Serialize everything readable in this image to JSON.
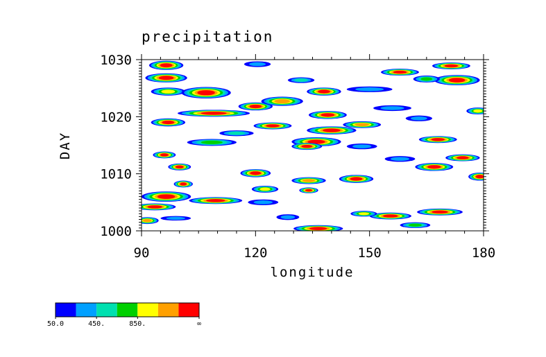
{
  "colors": {
    "levels": [
      "#0000ff",
      "#00a0ff",
      "#00e0b0",
      "#00d000",
      "#ffff00",
      "#ffa000",
      "#ff0000"
    ],
    "frame": "#000000",
    "background": "#ffffff"
  },
  "chart_data": {
    "type": "heatmap",
    "title": "precipitation",
    "xlabel": "longitude",
    "ylabel": "DAY",
    "xlim": [
      90,
      180
    ],
    "ylim": [
      1000,
      1030
    ],
    "x_ticks": [
      90,
      120,
      150,
      180
    ],
    "y_ticks": [
      1000,
      1010,
      1020,
      1030
    ],
    "x_tick_labels": [
      "90",
      "120",
      "150",
      "180"
    ],
    "y_tick_labels": [
      "1000",
      "1010",
      "1020",
      "1030"
    ],
    "colorbar": {
      "labels": [
        "50.0",
        "450.",
        "850.",
        "∞"
      ],
      "levels": 7
    },
    "features": [
      {
        "lon": 96.5,
        "day": 1029.0,
        "dlon": 4.5,
        "dday": 0.8,
        "peak": 7
      },
      {
        "lon": 96.5,
        "day": 1026.8,
        "dlon": 5.5,
        "dday": 0.8,
        "peak": 7
      },
      {
        "lon": 97.0,
        "day": 1024.4,
        "dlon": 4.5,
        "dday": 0.7,
        "peak": 5
      },
      {
        "lon": 107.0,
        "day": 1024.2,
        "dlon": 6.5,
        "dday": 1.0,
        "peak": 7
      },
      {
        "lon": 120.0,
        "day": 1021.8,
        "dlon": 4.5,
        "dday": 0.7,
        "peak": 7
      },
      {
        "lon": 127.0,
        "day": 1022.7,
        "dlon": 5.5,
        "dday": 0.8,
        "peak": 6
      },
      {
        "lon": 138.0,
        "day": 1024.4,
        "dlon": 4.5,
        "dday": 0.7,
        "peak": 7
      },
      {
        "lon": 109.0,
        "day": 1020.6,
        "dlon": 9.5,
        "dday": 0.6,
        "peak": 7
      },
      {
        "lon": 97.0,
        "day": 1019.0,
        "dlon": 4.5,
        "dday": 0.7,
        "peak": 7
      },
      {
        "lon": 108.5,
        "day": 1015.5,
        "dlon": 6.5,
        "dday": 0.6,
        "peak": 4
      },
      {
        "lon": 124.5,
        "day": 1018.4,
        "dlon": 5.0,
        "dday": 0.6,
        "peak": 7
      },
      {
        "lon": 139.0,
        "day": 1020.3,
        "dlon": 5.0,
        "dday": 0.7,
        "peak": 7
      },
      {
        "lon": 140.0,
        "day": 1017.6,
        "dlon": 6.5,
        "dday": 0.7,
        "peak": 7
      },
      {
        "lon": 136.0,
        "day": 1015.6,
        "dlon": 6.5,
        "dday": 0.8,
        "peak": 7
      },
      {
        "lon": 133.5,
        "day": 1014.8,
        "dlon": 4.0,
        "dday": 0.6,
        "peak": 7
      },
      {
        "lon": 148.0,
        "day": 1018.6,
        "dlon": 5.0,
        "dday": 0.6,
        "peak": 6
      },
      {
        "lon": 158.0,
        "day": 1027.8,
        "dlon": 5.0,
        "dday": 0.6,
        "peak": 7
      },
      {
        "lon": 171.5,
        "day": 1028.9,
        "dlon": 5.0,
        "dday": 0.6,
        "peak": 7
      },
      {
        "lon": 173.0,
        "day": 1026.4,
        "dlon": 6.0,
        "dday": 0.9,
        "peak": 7
      },
      {
        "lon": 165.0,
        "day": 1026.6,
        "dlon": 3.5,
        "dday": 0.6,
        "peak": 4
      },
      {
        "lon": 178.5,
        "day": 1021.0,
        "dlon": 3.0,
        "dday": 0.6,
        "peak": 5
      },
      {
        "lon": 168.0,
        "day": 1016.0,
        "dlon": 5.0,
        "dday": 0.6,
        "peak": 7
      },
      {
        "lon": 174.5,
        "day": 1012.8,
        "dlon": 4.5,
        "dday": 0.6,
        "peak": 7
      },
      {
        "lon": 167.0,
        "day": 1011.2,
        "dlon": 5.0,
        "dday": 0.7,
        "peak": 7
      },
      {
        "lon": 179.0,
        "day": 1009.5,
        "dlon": 3.0,
        "dday": 0.7,
        "peak": 7
      },
      {
        "lon": 96.0,
        "day": 1013.3,
        "dlon": 3.0,
        "dday": 0.6,
        "peak": 7
      },
      {
        "lon": 100.0,
        "day": 1011.2,
        "dlon": 3.0,
        "dday": 0.6,
        "peak": 7
      },
      {
        "lon": 101.0,
        "day": 1008.2,
        "dlon": 2.5,
        "dday": 0.6,
        "peak": 7
      },
      {
        "lon": 96.5,
        "day": 1006.0,
        "dlon": 6.5,
        "dday": 0.9,
        "peak": 7
      },
      {
        "lon": 93.5,
        "day": 1004.2,
        "dlon": 5.5,
        "dday": 0.6,
        "peak": 7
      },
      {
        "lon": 91.5,
        "day": 1001.8,
        "dlon": 3.0,
        "dday": 0.6,
        "peak": 6
      },
      {
        "lon": 109.5,
        "day": 1005.3,
        "dlon": 7.0,
        "dday": 0.6,
        "peak": 7
      },
      {
        "lon": 120.0,
        "day": 1010.1,
        "dlon": 4.0,
        "dday": 0.7,
        "peak": 7
      },
      {
        "lon": 122.5,
        "day": 1007.3,
        "dlon": 3.5,
        "dday": 0.6,
        "peak": 5
      },
      {
        "lon": 134.0,
        "day": 1008.8,
        "dlon": 4.5,
        "dday": 0.6,
        "peak": 6
      },
      {
        "lon": 134.0,
        "day": 1007.1,
        "dlon": 2.5,
        "dday": 0.5,
        "peak": 7
      },
      {
        "lon": 146.5,
        "day": 1009.1,
        "dlon": 4.5,
        "dday": 0.7,
        "peak": 7
      },
      {
        "lon": 155.5,
        "day": 1002.6,
        "dlon": 5.5,
        "dday": 0.6,
        "peak": 7
      },
      {
        "lon": 168.5,
        "day": 1003.3,
        "dlon": 6.0,
        "dday": 0.6,
        "peak": 7
      },
      {
        "lon": 136.5,
        "day": 1000.4,
        "dlon": 6.5,
        "dday": 0.6,
        "peak": 7
      },
      {
        "lon": 148.5,
        "day": 1003.0,
        "dlon": 3.5,
        "dday": 0.5,
        "peak": 5
      },
      {
        "lon": 162.0,
        "day": 1001.0,
        "dlon": 4.0,
        "dday": 0.5,
        "peak": 4
      },
      {
        "lon": 120.5,
        "day": 1029.2,
        "dlon": 3.5,
        "dday": 0.5,
        "peak": 2
      },
      {
        "lon": 132.0,
        "day": 1026.4,
        "dlon": 3.5,
        "dday": 0.5,
        "peak": 3
      },
      {
        "lon": 150.0,
        "day": 1024.8,
        "dlon": 6.0,
        "dday": 0.5,
        "peak": 2
      },
      {
        "lon": 156.0,
        "day": 1021.5,
        "dlon": 5.0,
        "dday": 0.5,
        "peak": 2
      },
      {
        "lon": 115.0,
        "day": 1017.1,
        "dlon": 4.5,
        "dday": 0.5,
        "peak": 3
      },
      {
        "lon": 148.0,
        "day": 1014.8,
        "dlon": 4.0,
        "dday": 0.5,
        "peak": 2
      },
      {
        "lon": 163.0,
        "day": 1019.7,
        "dlon": 3.5,
        "dday": 0.5,
        "peak": 2
      },
      {
        "lon": 158.0,
        "day": 1012.6,
        "dlon": 4.0,
        "dday": 0.5,
        "peak": 2
      },
      {
        "lon": 122.0,
        "day": 1005.0,
        "dlon": 4.0,
        "dday": 0.5,
        "peak": 2
      },
      {
        "lon": 128.5,
        "day": 1002.4,
        "dlon": 3.0,
        "dday": 0.5,
        "peak": 2
      },
      {
        "lon": 99.0,
        "day": 1002.2,
        "dlon": 4.0,
        "dday": 0.4,
        "peak": 2
      }
    ]
  }
}
